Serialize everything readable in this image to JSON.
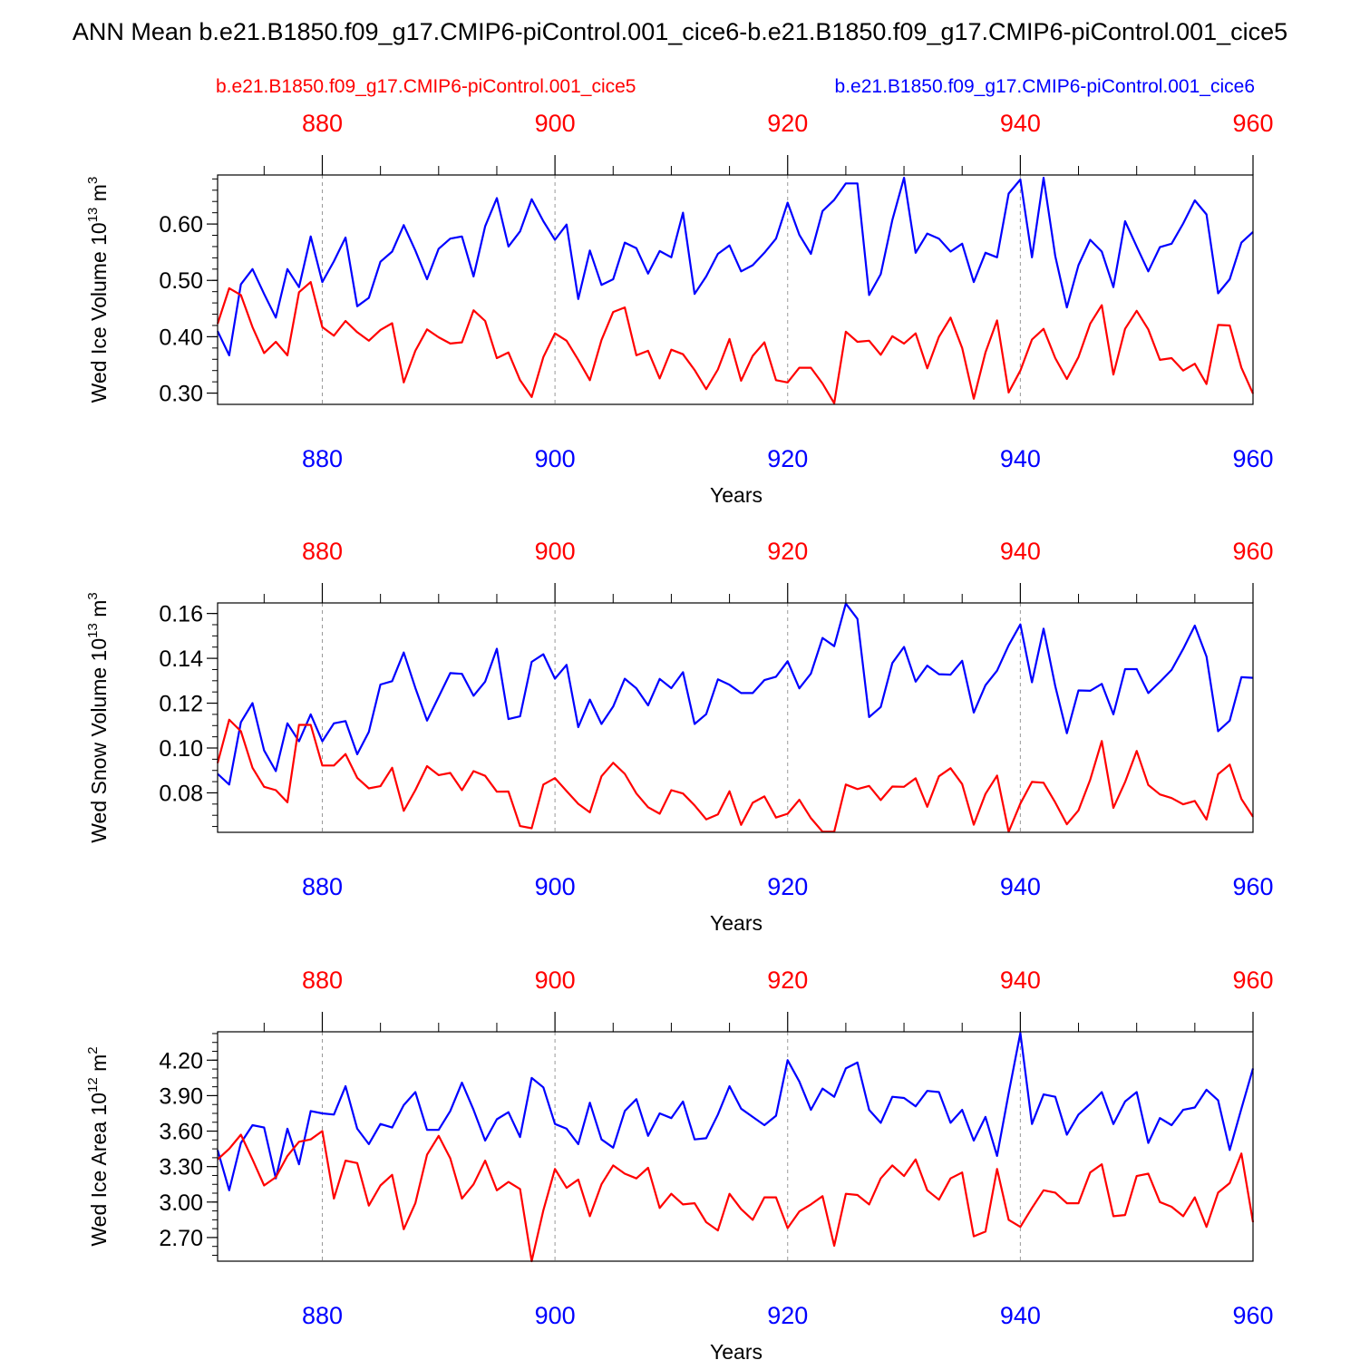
{
  "title": "ANN Mean b.e21.B1850.f09_g17.CMIP6-piControl.001_cice6-b.e21.B1850.f09_g17.CMIP6-piControl.001_cice5",
  "legend": {
    "red_label": "b.e21.B1850.f09_g17.CMIP6-piControl.001_cice5",
    "blue_label": "b.e21.B1850.f09_g17.CMIP6-piControl.001_cice6"
  },
  "colors": {
    "red": "#ff0000",
    "blue": "#0000ff",
    "axis": "#000000",
    "grid": "#999999"
  },
  "chart_data": [
    {
      "type": "line",
      "ylabel": "Wed Ice Volume",
      "yunit_base": "10",
      "yunit_exp": "13",
      "yunit_sym": "m",
      "yunit_pow": "3",
      "xlabel": "Years",
      "xlim": [
        871,
        960
      ],
      "ylim": [
        0.28,
        0.687
      ],
      "yticks": [
        0.3,
        0.4,
        0.5,
        0.6
      ],
      "ytick_labels": [
        "0.30",
        "0.40",
        "0.50",
        "0.60"
      ],
      "yminor_step": 0.02,
      "xticks": [
        880,
        900,
        920,
        940,
        960
      ],
      "xtick_labels": [
        "880",
        "900",
        "920",
        "940",
        "960"
      ],
      "x_start": 871,
      "series": [
        {
          "name": "b.e21.B1850.f09_g17.CMIP6-piControl.001_cice6",
          "color": "blue",
          "values": [
            0.41,
            0.367,
            0.493,
            0.52,
            0.476,
            0.434,
            0.52,
            0.488,
            0.578,
            0.497,
            0.534,
            0.576,
            0.454,
            0.469,
            0.533,
            0.551,
            0.598,
            0.553,
            0.502,
            0.556,
            0.574,
            0.578,
            0.507,
            0.596,
            0.646,
            0.56,
            0.587,
            0.644,
            0.605,
            0.572,
            0.599,
            0.467,
            0.553,
            0.492,
            0.502,
            0.567,
            0.557,
            0.512,
            0.552,
            0.541,
            0.62,
            0.476,
            0.507,
            0.547,
            0.562,
            0.516,
            0.527,
            0.549,
            0.574,
            0.638,
            0.581,
            0.547,
            0.623,
            0.643,
            0.672,
            0.672,
            0.474,
            0.511,
            0.607,
            0.682,
            0.549,
            0.583,
            0.574,
            0.551,
            0.565,
            0.497,
            0.549,
            0.541,
            0.654,
            0.679,
            0.541,
            0.682,
            0.543,
            0.452,
            0.527,
            0.572,
            0.551,
            0.488,
            0.605,
            0.56,
            0.516,
            0.559,
            0.565,
            0.601,
            0.642,
            0.617,
            0.477,
            0.502,
            0.567,
            0.586
          ]
        },
        {
          "name": "b.e21.B1850.f09_g17.CMIP6-piControl.001_cice5",
          "color": "red",
          "values": [
            0.423,
            0.486,
            0.474,
            0.417,
            0.371,
            0.391,
            0.367,
            0.479,
            0.497,
            0.417,
            0.402,
            0.428,
            0.408,
            0.393,
            0.412,
            0.424,
            0.319,
            0.375,
            0.413,
            0.399,
            0.388,
            0.39,
            0.447,
            0.428,
            0.362,
            0.372,
            0.323,
            0.293,
            0.364,
            0.406,
            0.393,
            0.359,
            0.323,
            0.394,
            0.444,
            0.452,
            0.367,
            0.375,
            0.326,
            0.377,
            0.369,
            0.341,
            0.307,
            0.342,
            0.396,
            0.322,
            0.366,
            0.39,
            0.323,
            0.319,
            0.345,
            0.345,
            0.317,
            0.282,
            0.409,
            0.391,
            0.393,
            0.368,
            0.401,
            0.388,
            0.406,
            0.344,
            0.4,
            0.434,
            0.38,
            0.29,
            0.372,
            0.429,
            0.301,
            0.34,
            0.395,
            0.414,
            0.362,
            0.325,
            0.364,
            0.423,
            0.456,
            0.333,
            0.414,
            0.446,
            0.413,
            0.359,
            0.362,
            0.34,
            0.352,
            0.316,
            0.421,
            0.42,
            0.345,
            0.299
          ]
        }
      ]
    },
    {
      "type": "line",
      "ylabel": "Wed Snow Volume",
      "yunit_base": "10",
      "yunit_exp": "13",
      "yunit_sym": "m",
      "yunit_pow": "3",
      "xlabel": "Years",
      "xlim": [
        871,
        960
      ],
      "ylim": [
        0.0624,
        0.1647
      ],
      "yticks": [
        0.08,
        0.1,
        0.12,
        0.14,
        0.16
      ],
      "ytick_labels": [
        "0.08",
        "0.10",
        "0.12",
        "0.14",
        "0.16"
      ],
      "yminor_step": 0.005,
      "xticks": [
        880,
        900,
        920,
        940,
        960
      ],
      "xtick_labels": [
        "880",
        "900",
        "920",
        "940",
        "960"
      ],
      "x_start": 871,
      "series": [
        {
          "name": "b.e21.B1850.f09_g17.CMIP6-piControl.001_cice6",
          "color": "blue",
          "values": [
            0.0885,
            0.0837,
            0.1115,
            0.12,
            0.0989,
            0.0897,
            0.111,
            0.103,
            0.115,
            0.103,
            0.111,
            0.112,
            0.0972,
            0.1072,
            0.1283,
            0.1298,
            0.1426,
            0.1268,
            0.1122,
            0.1228,
            0.1334,
            0.1331,
            0.1233,
            0.1296,
            0.1443,
            0.1129,
            0.1141,
            0.1384,
            0.1418,
            0.1309,
            0.1371,
            0.1093,
            0.1216,
            0.1107,
            0.1185,
            0.1309,
            0.1266,
            0.119,
            0.1308,
            0.1267,
            0.1338,
            0.1107,
            0.1151,
            0.1306,
            0.1282,
            0.1245,
            0.1245,
            0.1303,
            0.1318,
            0.1387,
            0.1266,
            0.1332,
            0.1491,
            0.1454,
            0.1644,
            0.1576,
            0.1138,
            0.1183,
            0.1379,
            0.1451,
            0.1296,
            0.1367,
            0.1329,
            0.1327,
            0.1389,
            0.1158,
            0.128,
            0.1345,
            0.1458,
            0.1551,
            0.1293,
            0.1532,
            0.1276,
            0.1066,
            0.1257,
            0.1255,
            0.1286,
            0.115,
            0.1352,
            0.1352,
            0.1245,
            0.1295,
            0.1348,
            0.1442,
            0.1546,
            0.1408,
            0.1075,
            0.1122,
            0.1316,
            0.1313
          ]
        },
        {
          "name": "b.e21.B1850.f09_g17.CMIP6-piControl.001_cice5",
          "color": "red",
          "values": [
            0.0933,
            0.1126,
            0.1075,
            0.0912,
            0.0827,
            0.0812,
            0.0758,
            0.1103,
            0.1103,
            0.0922,
            0.0922,
            0.0973,
            0.0867,
            0.082,
            0.083,
            0.0912,
            0.072,
            0.0812,
            0.0919,
            0.0879,
            0.0889,
            0.0812,
            0.0897,
            0.0876,
            0.0805,
            0.0806,
            0.0652,
            0.0642,
            0.0837,
            0.0866,
            0.0808,
            0.0751,
            0.0713,
            0.0874,
            0.0934,
            0.0885,
            0.0797,
            0.0736,
            0.0707,
            0.0812,
            0.0797,
            0.0744,
            0.0682,
            0.0704,
            0.0807,
            0.0657,
            0.0756,
            0.0784,
            0.069,
            0.0707,
            0.0769,
            0.0687,
            0.0627,
            0.0627,
            0.0837,
            0.0817,
            0.0831,
            0.0768,
            0.0828,
            0.0827,
            0.0865,
            0.0738,
            0.0874,
            0.091,
            0.0839,
            0.0658,
            0.0795,
            0.0877,
            0.0626,
            0.0752,
            0.0849,
            0.0845,
            0.0757,
            0.066,
            0.0722,
            0.0858,
            0.1031,
            0.0733,
            0.0848,
            0.0987,
            0.0835,
            0.0793,
            0.0777,
            0.0749,
            0.0764,
            0.0681,
            0.0883,
            0.0926,
            0.0773,
            0.0693
          ]
        }
      ]
    },
    {
      "type": "line",
      "ylabel": "Wed Ice Area",
      "yunit_base": "10",
      "yunit_exp": "12",
      "yunit_sym": "m",
      "yunit_pow": "2",
      "xlabel": "Years",
      "xlim": [
        871,
        960
      ],
      "ylim": [
        2.5,
        4.44
      ],
      "yticks": [
        2.7,
        3.0,
        3.3,
        3.6,
        3.9,
        4.2
      ],
      "ytick_labels": [
        "2.70",
        "3.00",
        "3.30",
        "3.60",
        "3.90",
        "4.20"
      ],
      "yminor_step": 0.075,
      "xticks": [
        880,
        900,
        920,
        940,
        960
      ],
      "xtick_labels": [
        "880",
        "900",
        "920",
        "940",
        "960"
      ],
      "x_start": 871,
      "series": [
        {
          "name": "b.e21.B1850.f09_g17.CMIP6-piControl.001_cice6",
          "color": "blue",
          "values": [
            3.44,
            3.1,
            3.5,
            3.65,
            3.63,
            3.2,
            3.62,
            3.32,
            3.77,
            3.75,
            3.74,
            3.98,
            3.62,
            3.49,
            3.66,
            3.63,
            3.82,
            3.93,
            3.61,
            3.61,
            3.77,
            4.01,
            3.78,
            3.52,
            3.7,
            3.76,
            3.55,
            4.05,
            3.97,
            3.66,
            3.62,
            3.49,
            3.84,
            3.53,
            3.46,
            3.77,
            3.87,
            3.56,
            3.75,
            3.71,
            3.85,
            3.53,
            3.54,
            3.74,
            3.98,
            3.79,
            3.72,
            3.65,
            3.73,
            4.2,
            4.02,
            3.78,
            3.96,
            3.89,
            4.13,
            4.18,
            3.78,
            3.67,
            3.89,
            3.88,
            3.81,
            3.94,
            3.93,
            3.67,
            3.78,
            3.52,
            3.72,
            3.39,
            3.92,
            4.43,
            3.66,
            3.91,
            3.89,
            3.57,
            3.74,
            3.83,
            3.93,
            3.66,
            3.85,
            3.93,
            3.5,
            3.71,
            3.65,
            3.78,
            3.8,
            3.95,
            3.86,
            3.44,
            3.79,
            4.13
          ]
        },
        {
          "name": "b.e21.B1850.f09_g17.CMIP6-piControl.001_cice5",
          "color": "red",
          "values": [
            3.36,
            3.45,
            3.57,
            3.36,
            3.14,
            3.21,
            3.39,
            3.51,
            3.53,
            3.6,
            3.03,
            3.35,
            3.33,
            2.97,
            3.14,
            3.23,
            2.77,
            2.99,
            3.4,
            3.56,
            3.37,
            3.03,
            3.15,
            3.35,
            3.1,
            3.17,
            3.11,
            2.5,
            2.93,
            3.28,
            3.12,
            3.19,
            2.88,
            3.15,
            3.31,
            3.24,
            3.2,
            3.29,
            2.95,
            3.07,
            2.98,
            2.99,
            2.83,
            2.76,
            3.07,
            2.94,
            2.85,
            3.04,
            3.04,
            2.78,
            2.92,
            2.98,
            3.05,
            2.63,
            3.07,
            3.06,
            2.98,
            3.2,
            3.31,
            3.22,
            3.36,
            3.1,
            3.02,
            3.2,
            3.25,
            2.71,
            2.75,
            3.28,
            2.85,
            2.79,
            2.95,
            3.1,
            3.08,
            2.99,
            2.99,
            3.25,
            3.32,
            2.88,
            2.89,
            3.22,
            3.24,
            3.0,
            2.96,
            2.88,
            3.04,
            2.79,
            3.08,
            3.16,
            3.41,
            2.83
          ]
        }
      ]
    }
  ]
}
